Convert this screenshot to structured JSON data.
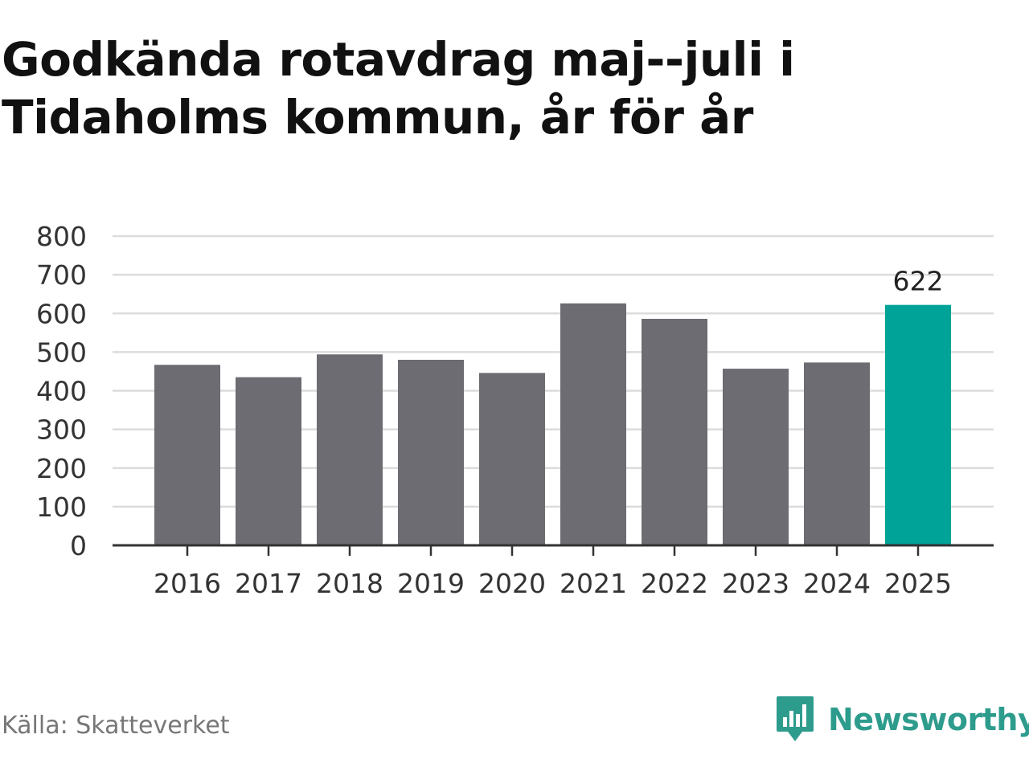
{
  "title_lines": [
    "Godkända rotavdrag maj--juli i",
    "Tidaholms kommun, år för år"
  ],
  "source": "Källa: Skatteverket",
  "brand": {
    "name": "Newsworthy",
    "icon": "newsworthy-logo-icon",
    "color": "#2e9c8d"
  },
  "chart_data": {
    "type": "bar",
    "categories": [
      "2016",
      "2017",
      "2018",
      "2019",
      "2020",
      "2021",
      "2022",
      "2023",
      "2024",
      "2025"
    ],
    "values": [
      467,
      435,
      494,
      480,
      446,
      626,
      586,
      457,
      473,
      622
    ],
    "ylim": [
      0,
      800
    ],
    "yticks": [
      0,
      100,
      200,
      300,
      400,
      500,
      600,
      700,
      800
    ],
    "grid": true,
    "bar_color": "#6d6c72",
    "highlight_color": "#00a398",
    "highlight_index": 9,
    "annotation": {
      "index": 9,
      "text": "622"
    }
  }
}
